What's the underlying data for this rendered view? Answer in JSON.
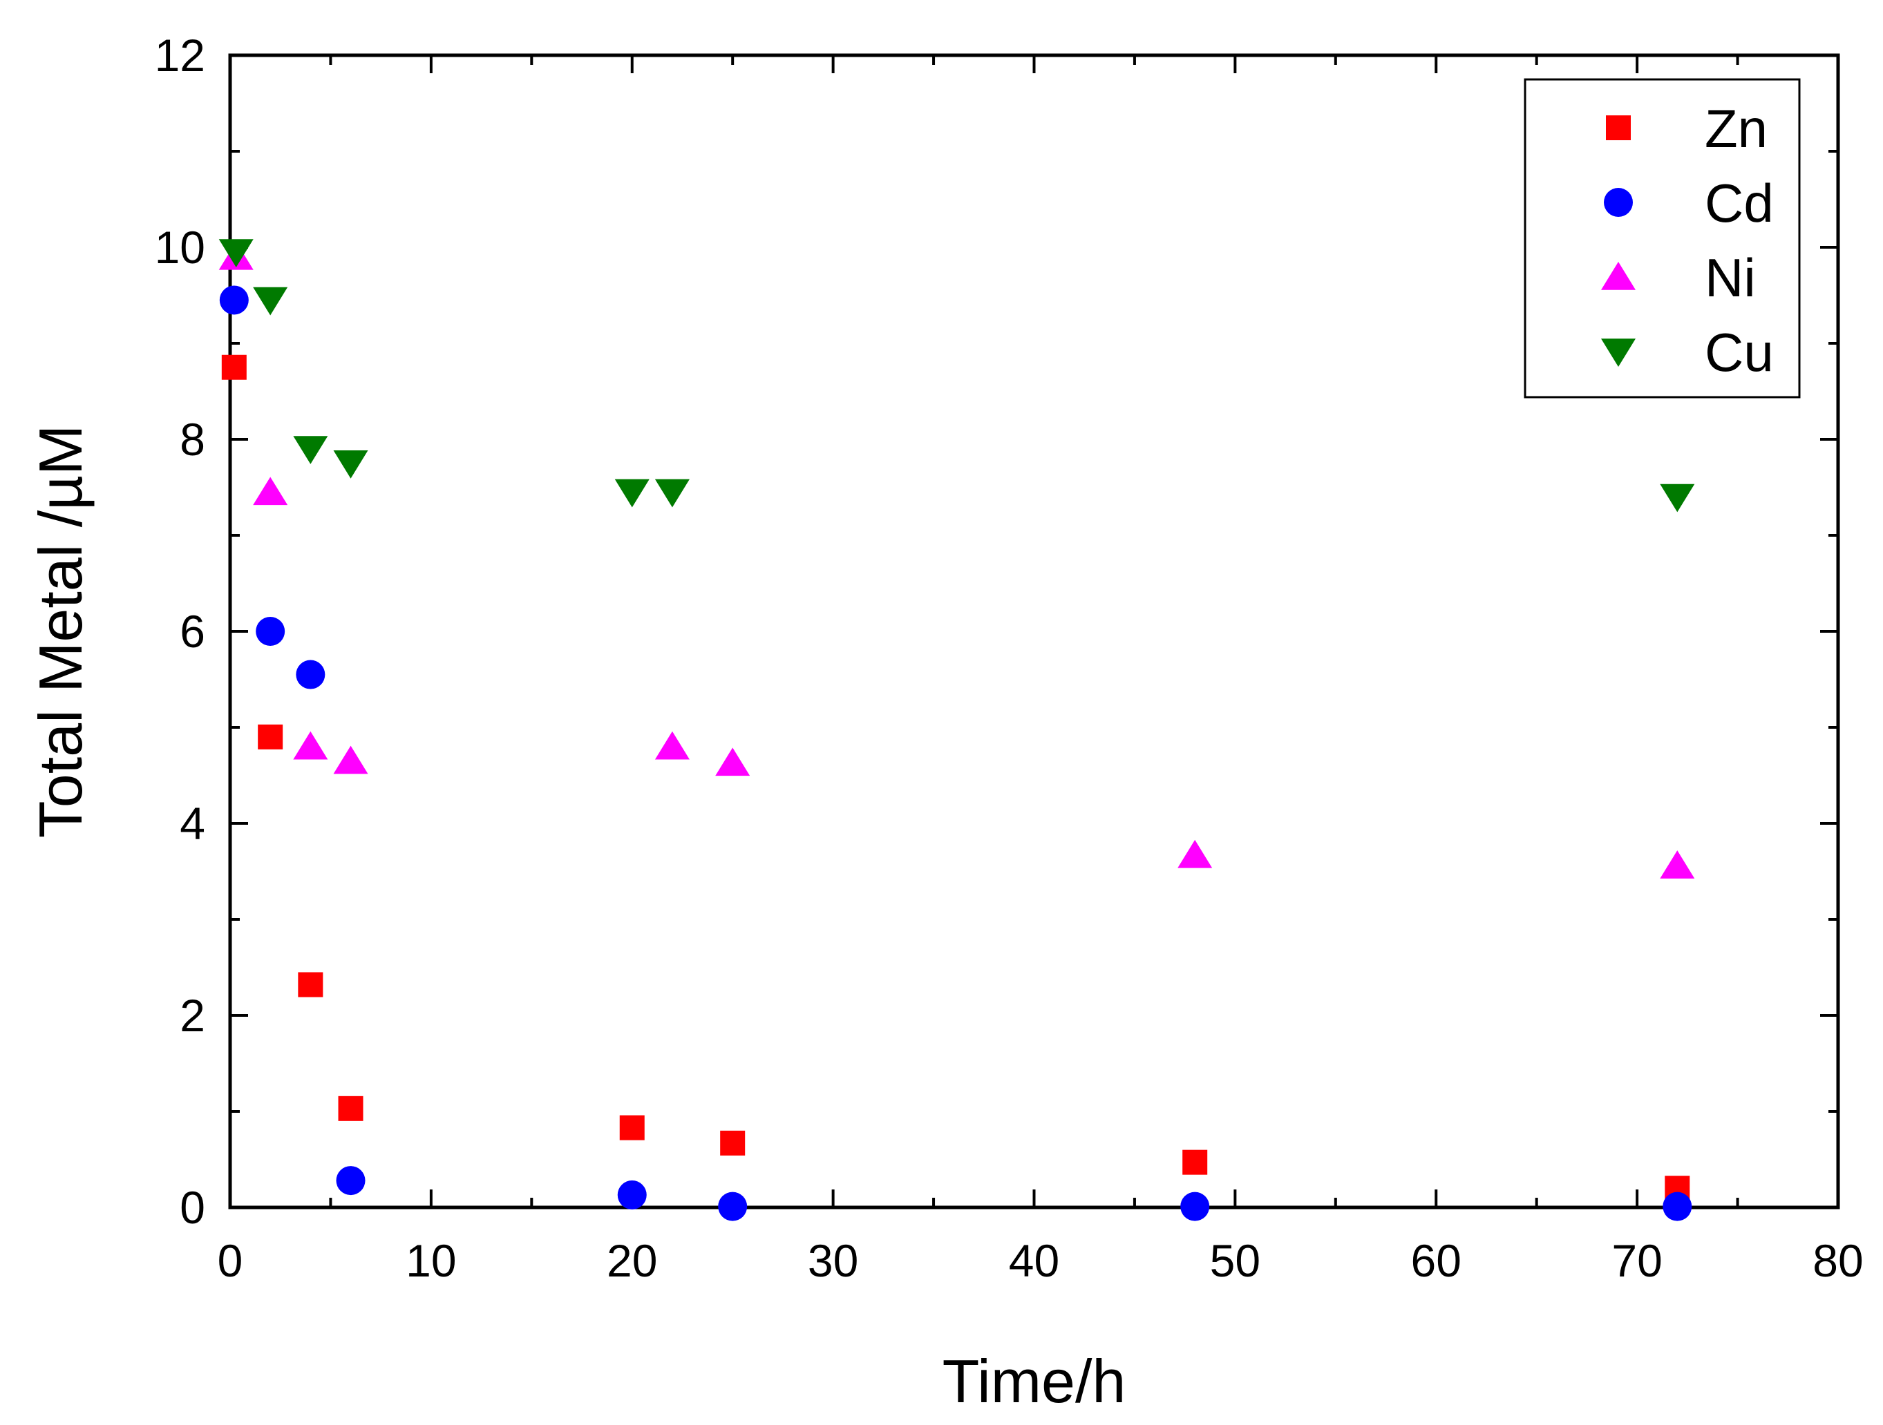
{
  "chart_data": {
    "type": "scatter",
    "title": "",
    "xlabel": "Time/h",
    "ylabel": "Total Metal /µM",
    "xlim": [
      0,
      80
    ],
    "ylim": [
      0,
      12
    ],
    "x_major_ticks": [
      0,
      10,
      20,
      30,
      40,
      50,
      60,
      70,
      80
    ],
    "x_tick_labels": [
      "0",
      "10",
      "20",
      "30",
      "40",
      "50",
      "60",
      "70",
      "80"
    ],
    "y_major_ticks": [
      0,
      2,
      4,
      6,
      8,
      10,
      12
    ],
    "y_tick_labels": [
      "0",
      "2",
      "4",
      "6",
      "8",
      "10",
      "12"
    ],
    "grid": false,
    "legend_position": "top-right",
    "series": [
      {
        "name": "Zn",
        "marker": "square",
        "color": "#ff0000",
        "points": [
          [
            0.2,
            8.75
          ],
          [
            2,
            4.9
          ],
          [
            4,
            2.32
          ],
          [
            6,
            1.03
          ],
          [
            20,
            0.83
          ],
          [
            25,
            0.67
          ],
          [
            48,
            0.47
          ],
          [
            72,
            0.2
          ]
        ]
      },
      {
        "name": "Cd",
        "marker": "circle",
        "color": "#0000ff",
        "points": [
          [
            0.2,
            9.45
          ],
          [
            2,
            6.0
          ],
          [
            4,
            5.55
          ],
          [
            6,
            0.28
          ],
          [
            20,
            0.13
          ],
          [
            25,
            0.01
          ],
          [
            48,
            0.01
          ],
          [
            72,
            0.01
          ]
        ]
      },
      {
        "name": "Ni",
        "marker": "triangle-up",
        "color": "#ff00ff",
        "points": [
          [
            0.3,
            9.9
          ],
          [
            2,
            7.45
          ],
          [
            4,
            4.8
          ],
          [
            6,
            4.65
          ],
          [
            22,
            4.8
          ],
          [
            25,
            4.63
          ],
          [
            48,
            3.67
          ],
          [
            72,
            3.56
          ]
        ]
      },
      {
        "name": "Cu",
        "marker": "triangle-down",
        "color": "#007a00",
        "points": [
          [
            0.3,
            9.95
          ],
          [
            2,
            9.45
          ],
          [
            4,
            7.9
          ],
          [
            6,
            7.75
          ],
          [
            20,
            7.45
          ],
          [
            22,
            7.45
          ],
          [
            72,
            7.4
          ]
        ]
      }
    ]
  }
}
